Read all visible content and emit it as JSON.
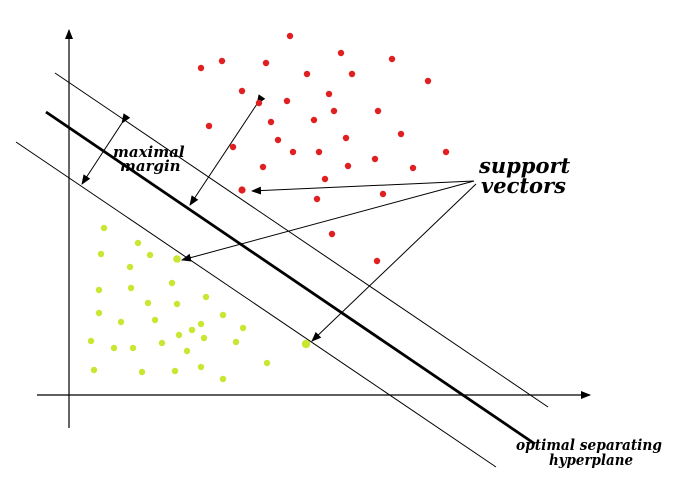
{
  "labels": {
    "margin_line1": "maximal",
    "margin_line2": "margin",
    "support_line1": "support",
    "support_line2": "vectors",
    "hyperplane_line1": "optimal separating",
    "hyperplane_line2": "hyperplane"
  },
  "colors": {
    "class_a": "#e02020",
    "class_b": "#c8e632",
    "ink": "#000000"
  }
}
